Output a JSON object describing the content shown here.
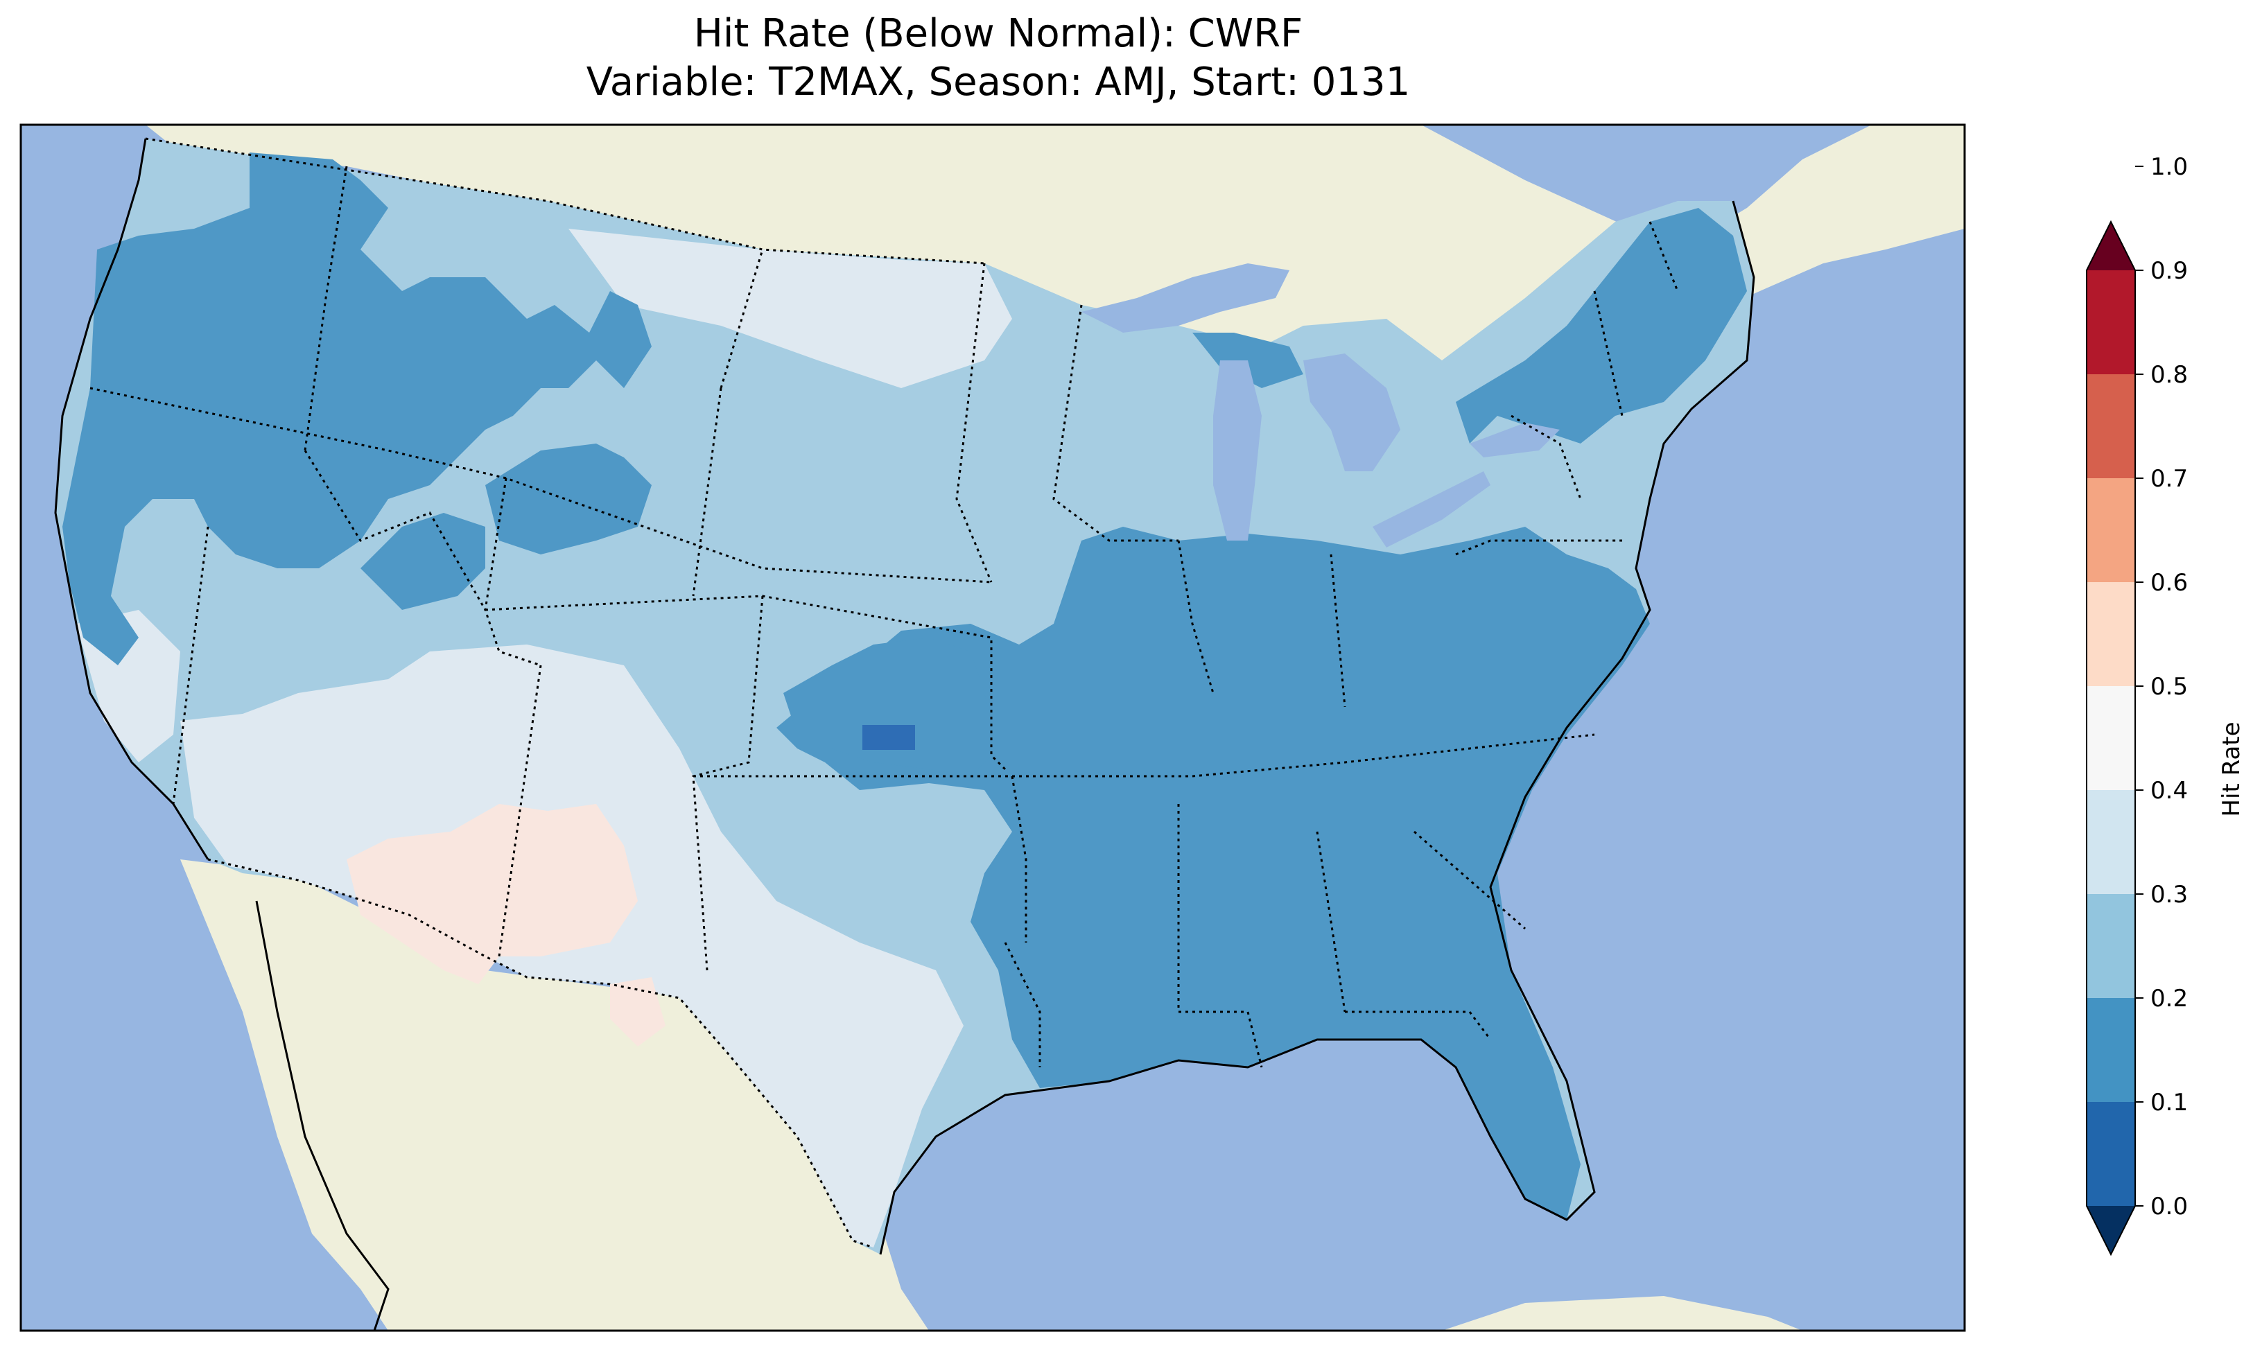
{
  "title": {
    "line1": "Hit Rate (Below Normal): CWRF",
    "line2": "Variable: T2MAX, Season: AMJ, Start: 0131"
  },
  "colorbar": {
    "label": "Hit Rate",
    "ticks": [
      "0.0",
      "0.1",
      "0.2",
      "0.3",
      "0.4",
      "0.5",
      "0.6",
      "0.7",
      "0.8",
      "0.9",
      "1.0"
    ],
    "colors": [
      "#053061",
      "#2166ac",
      "#4393c3",
      "#92c5de",
      "#d1e5f0",
      "#f7f7f7",
      "#fddbc7",
      "#f4a582",
      "#d6604d",
      "#b2182b",
      "#67001f"
    ],
    "extend": "both"
  },
  "map_colors": {
    "ocean": "#97b6e1",
    "land": "#efefdb",
    "class_0_2_0_3": "#4f98c6",
    "class_0_3_0_4": "#a6cde2",
    "class_0_4_0_5": "#dfe9f1",
    "class_0_5_0_6": "#f9e6df",
    "class_0_1_0_2": "#2e6db5"
  }
}
